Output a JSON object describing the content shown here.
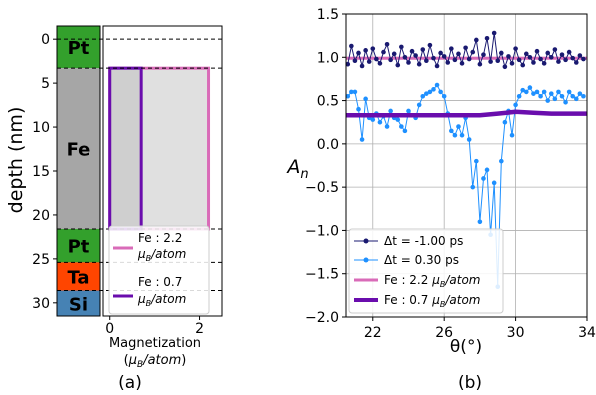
{
  "colors": {
    "pt": "#33a02c",
    "fe": "#a6a6a6",
    "ta": "#ff4500",
    "si": "#4682b4",
    "pink": "#d96bb8",
    "purple": "#6a0dad",
    "navy": "#191970",
    "lightblue": "#1e90ff"
  },
  "chart_data": [
    {
      "type": "bar",
      "panel_label": "(a)",
      "ylabel": "depth (nm)",
      "ylim": [
        31.5,
        -1.5
      ],
      "yticks": [
        "0",
        "5",
        "10",
        "15",
        "20",
        "25",
        "30"
      ],
      "xlabel_line1": "Magnetization",
      "xlabel_line2": "(μB/atom)",
      "xticks": [
        "0",
        "2"
      ],
      "xlim": [
        -0.15,
        2.5
      ],
      "layers": [
        {
          "name": "Pt",
          "top": -1.5,
          "bottom": 3.3
        },
        {
          "name": "Fe",
          "top": 3.3,
          "bottom": 21.6
        },
        {
          "name": "Pt",
          "top": 21.6,
          "bottom": 25.4
        },
        {
          "name": "Ta",
          "top": 25.4,
          "bottom": 28.6
        },
        {
          "name": "Si",
          "top": 28.6,
          "bottom": 31.5
        }
      ],
      "interfaces": [
        3.3,
        21.6,
        25.4,
        28.6
      ],
      "series": [
        {
          "name": "Fe : 2.2 μB/atom",
          "legend_line1": "Fe : 2.2",
          "legend_line2": "μB/atom",
          "value": 2.2,
          "top": 3.3,
          "bottom": 21.6
        },
        {
          "name": "Fe : 0.7 μB/atom",
          "legend_line1": "Fe : 0.7",
          "legend_line2": "μB/atom",
          "value": 0.7,
          "top": 3.3,
          "bottom": 21.6
        }
      ]
    },
    {
      "type": "line",
      "panel_label": "(b)",
      "xlabel": "θ(°)",
      "ylabel": "An",
      "xlim": [
        20.5,
        34
      ],
      "ylim": [
        -2.0,
        1.5
      ],
      "xticks": [
        22,
        26,
        30,
        34
      ],
      "yticks": [
        1.5,
        1.0,
        0.5,
        0.0,
        -0.5,
        -1.0,
        -1.5,
        -2.0
      ],
      "ytick_labels": [
        "1.5",
        "1.0",
        "0.5",
        "0.0",
        "−0.5",
        "−1.0",
        "−1.5",
        "−2.0"
      ],
      "grid": true,
      "legend_position": "lower-left",
      "series": [
        {
          "name": "Δt = -1.00 ps",
          "x": [
            20.6,
            20.8,
            21.0,
            21.2,
            21.4,
            21.6,
            21.8,
            22.0,
            22.2,
            22.4,
            22.6,
            22.8,
            23.0,
            23.2,
            23.4,
            23.6,
            23.8,
            24.0,
            24.2,
            24.4,
            24.6,
            24.8,
            25.0,
            25.2,
            25.4,
            25.6,
            25.8,
            26.0,
            26.2,
            26.4,
            26.6,
            26.8,
            27.0,
            27.2,
            27.4,
            27.6,
            27.8,
            28.0,
            28.2,
            28.4,
            28.6,
            28.8,
            29.0,
            29.2,
            29.4,
            29.6,
            29.8,
            30.0,
            30.2,
            30.4,
            30.6,
            30.8,
            31.0,
            31.2,
            31.4,
            31.6,
            31.8,
            32.0,
            32.2,
            32.4,
            32.6,
            32.8,
            33.0,
            33.2,
            33.4,
            33.6,
            33.8
          ],
          "y": [
            0.92,
            1.13,
            0.96,
            1.05,
            0.9,
            1.08,
            0.95,
            1.1,
            0.98,
            0.93,
            1.06,
            1.15,
            0.97,
            1.04,
            0.91,
            1.12,
            1.0,
            0.94,
            1.07,
            1.02,
            0.92,
            1.09,
            0.96,
            1.14,
            0.99,
            0.9,
            1.05,
            1.01,
            0.94,
            1.1,
            0.97,
            1.04,
            0.93,
            1.11,
            0.98,
            1.06,
            1.2,
            0.92,
            1.03,
            1.22,
            0.95,
            1.28,
            0.96,
            1.05,
            0.89,
            1.01,
            0.93,
            1.1,
            0.97,
            0.91,
            1.04,
            1.0,
            0.94,
            1.07,
            0.98,
            0.93,
            1.05,
            1.0,
            1.09,
            0.95,
            1.03,
            0.97,
            1.06,
            0.99,
            0.94,
            1.02,
            0.98
          ]
        },
        {
          "name": "Δt = 0.30 ps",
          "x": [
            20.6,
            20.8,
            21.0,
            21.2,
            21.4,
            21.6,
            21.8,
            22.0,
            22.2,
            22.4,
            22.6,
            22.8,
            23.0,
            23.2,
            23.4,
            23.6,
            23.8,
            24.0,
            24.2,
            24.4,
            24.6,
            24.8,
            25.0,
            25.2,
            25.4,
            25.6,
            25.8,
            26.0,
            26.2,
            26.4,
            26.6,
            26.8,
            27.0,
            27.2,
            27.4,
            27.6,
            27.8,
            28.0,
            28.2,
            28.4,
            28.6,
            28.8,
            29.0,
            29.2,
            29.4,
            29.6,
            29.8,
            30.0,
            30.2,
            30.4,
            30.6,
            30.8,
            31.0,
            31.2,
            31.4,
            31.6,
            31.8,
            32.0,
            32.2,
            32.4,
            32.6,
            32.8,
            33.0,
            33.2,
            33.4,
            33.6,
            33.8
          ],
          "y": [
            0.55,
            0.6,
            0.6,
            0.4,
            0.05,
            0.52,
            0.3,
            0.28,
            0.35,
            0.25,
            0.32,
            0.2,
            0.38,
            0.3,
            0.28,
            0.2,
            0.15,
            0.38,
            0.33,
            0.3,
            0.45,
            0.55,
            0.58,
            0.6,
            0.63,
            0.68,
            0.6,
            0.55,
            0.35,
            0.15,
            0.1,
            0.2,
            0.1,
            0.3,
            0.05,
            -0.5,
            -0.2,
            -0.9,
            -0.4,
            -0.3,
            -1.05,
            -0.45,
            -1.65,
            -0.2,
            0.25,
            0.38,
            0.1,
            0.45,
            0.55,
            0.62,
            0.6,
            0.65,
            0.58,
            0.6,
            0.55,
            0.6,
            0.5,
            0.58,
            0.52,
            0.6,
            0.55,
            0.48,
            0.6,
            0.55,
            0.52,
            0.58,
            0.55
          ]
        },
        {
          "name": "Fe : 2.2 μB/atom",
          "x": [
            20.5,
            22,
            24,
            26,
            28,
            30,
            32,
            34
          ],
          "y": [
            0.99,
            0.99,
            0.99,
            0.99,
            0.99,
            0.99,
            0.99,
            0.99
          ]
        },
        {
          "name": "Fe : 0.7 μB/atom",
          "x": [
            20.5,
            22,
            24,
            26,
            28,
            29,
            30,
            31,
            32,
            33,
            34
          ],
          "y": [
            0.33,
            0.33,
            0.33,
            0.33,
            0.33,
            0.35,
            0.37,
            0.36,
            0.35,
            0.35,
            0.35
          ]
        }
      ]
    }
  ]
}
